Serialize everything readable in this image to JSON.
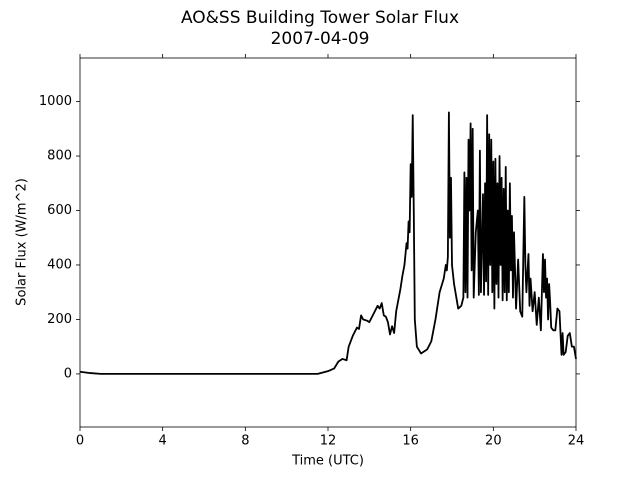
{
  "chart_data": {
    "type": "line",
    "title": "AO&SS Building Tower Solar Flux",
    "subtitle": "2007-04-09",
    "x_label": "Time (UTC)",
    "y_label": "Solar Flux (W/m^2)",
    "color": "#000000",
    "x": [
      0,
      0.5,
      1,
      4,
      8,
      11.5,
      12,
      12.3,
      12.5,
      12.7,
      12.9,
      13.0,
      13.2,
      13.4,
      13.5,
      13.6,
      13.7,
      13.9,
      14.0,
      14.2,
      14.4,
      14.5,
      14.6,
      14.7,
      14.8,
      14.9,
      15.0,
      15.1,
      15.2,
      15.3,
      15.5,
      15.6,
      15.7,
      15.8,
      15.85,
      15.9,
      15.95,
      16.0,
      16.05,
      16.1,
      16.15,
      16.2,
      16.3,
      16.5,
      16.8,
      17.0,
      17.2,
      17.4,
      17.6,
      17.7,
      17.75,
      17.8,
      17.85,
      17.9,
      17.95,
      18.0,
      18.1,
      18.3,
      18.45,
      18.55,
      18.6,
      18.65,
      18.7,
      18.75,
      18.8,
      18.85,
      18.9,
      18.95,
      19.0,
      19.05,
      19.15,
      19.25,
      19.3,
      19.35,
      19.4,
      19.5,
      19.55,
      19.6,
      19.65,
      19.7,
      19.75,
      19.8,
      19.85,
      19.9,
      19.95,
      20.0,
      20.05,
      20.1,
      20.15,
      20.2,
      20.25,
      20.3,
      20.35,
      20.4,
      20.45,
      20.5,
      20.55,
      20.6,
      20.65,
      20.7,
      20.75,
      20.8,
      20.85,
      20.9,
      20.95,
      21.0,
      21.1,
      21.2,
      21.3,
      21.4,
      21.5,
      21.55,
      21.6,
      21.7,
      21.75,
      21.8,
      21.9,
      22.0,
      22.1,
      22.2,
      22.3,
      22.4,
      22.45,
      22.5,
      22.55,
      22.6,
      22.65,
      22.7,
      22.75,
      22.8,
      22.9,
      23.0,
      23.1,
      23.2,
      23.3,
      23.35,
      23.4,
      23.5,
      23.6,
      23.7,
      23.8,
      23.9,
      24.0
    ],
    "values": [
      8,
      3,
      0,
      0,
      0,
      0,
      10,
      20,
      45,
      55,
      50,
      100,
      140,
      170,
      165,
      215,
      200,
      195,
      190,
      220,
      250,
      240,
      260,
      215,
      210,
      190,
      145,
      175,
      150,
      230,
      310,
      360,
      400,
      480,
      460,
      560,
      520,
      770,
      650,
      950,
      600,
      200,
      100,
      75,
      90,
      120,
      200,
      300,
      350,
      400,
      380,
      430,
      960,
      500,
      720,
      400,
      330,
      240,
      250,
      280,
      740,
      300,
      720,
      280,
      860,
      600,
      920,
      380,
      900,
      280,
      520,
      600,
      290,
      820,
      300,
      660,
      290,
      700,
      340,
      950,
      290,
      880,
      400,
      860,
      300,
      780,
      240,
      790,
      330,
      700,
      280,
      800,
      400,
      720,
      270,
      680,
      300,
      760,
      270,
      600,
      300,
      700,
      380,
      580,
      280,
      520,
      240,
      420,
      230,
      210,
      650,
      400,
      300,
      440,
      250,
      350,
      230,
      300,
      180,
      280,
      160,
      440,
      300,
      420,
      280,
      350,
      200,
      330,
      260,
      170,
      160,
      160,
      240,
      230,
      70,
      150,
      70,
      80,
      140,
      150,
      100,
      100,
      55
    ],
    "xlim": [
      0,
      24
    ],
    "xticks": [
      0,
      4,
      8,
      12,
      16,
      20,
      24
    ],
    "ylim": [
      -195,
      1160
    ],
    "yticks": [
      0,
      200,
      400,
      600,
      800,
      1000
    ]
  }
}
